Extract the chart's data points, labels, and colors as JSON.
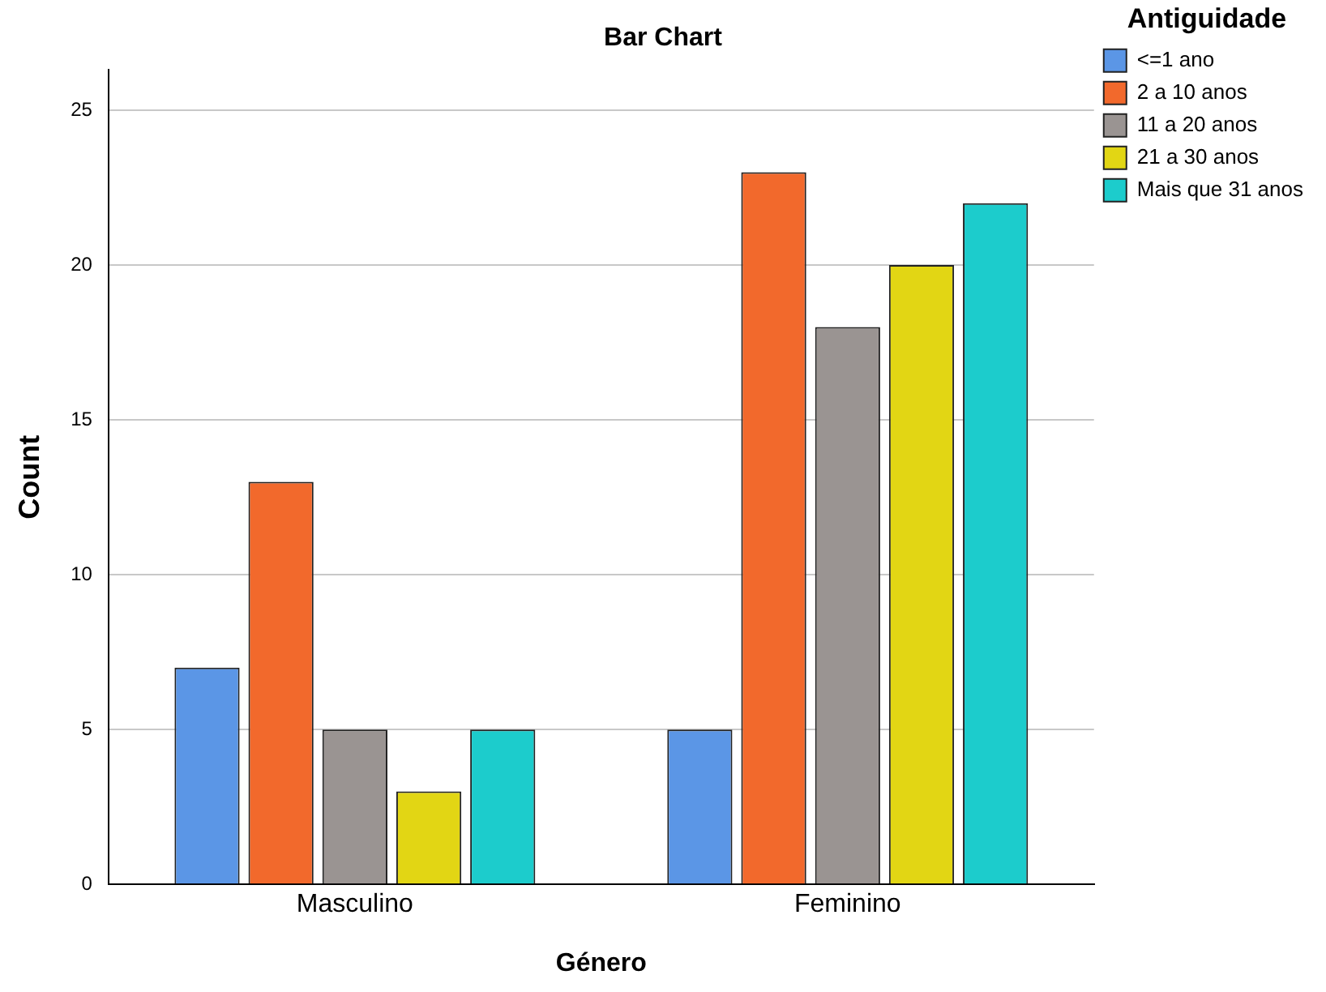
{
  "chart_data": {
    "type": "bar",
    "title": "Bar Chart",
    "xlabel": "Género",
    "ylabel": "Count",
    "legend_title": "Antiguidade",
    "categories": [
      "Masculino",
      "Feminino"
    ],
    "series": [
      {
        "name": "<=1 ano",
        "color": "#5b96e6",
        "values": [
          7,
          5
        ]
      },
      {
        "name": "2 a 10 anos",
        "color": "#f2692c",
        "values": [
          13,
          23
        ]
      },
      {
        "name": "11 a 20 anos",
        "color": "#9a9492",
        "values": [
          5,
          18
        ]
      },
      {
        "name": "21 a 30 anos",
        "color": "#e2d614",
        "values": [
          3,
          20
        ]
      },
      {
        "name": "Mais que 31 anos",
        "color": "#1ccccc",
        "values": [
          5,
          22
        ]
      }
    ],
    "ylim": [
      0,
      26.3
    ],
    "yticks": [
      0,
      5,
      10,
      15,
      20,
      25
    ],
    "grid": "y",
    "legend": "top right"
  }
}
